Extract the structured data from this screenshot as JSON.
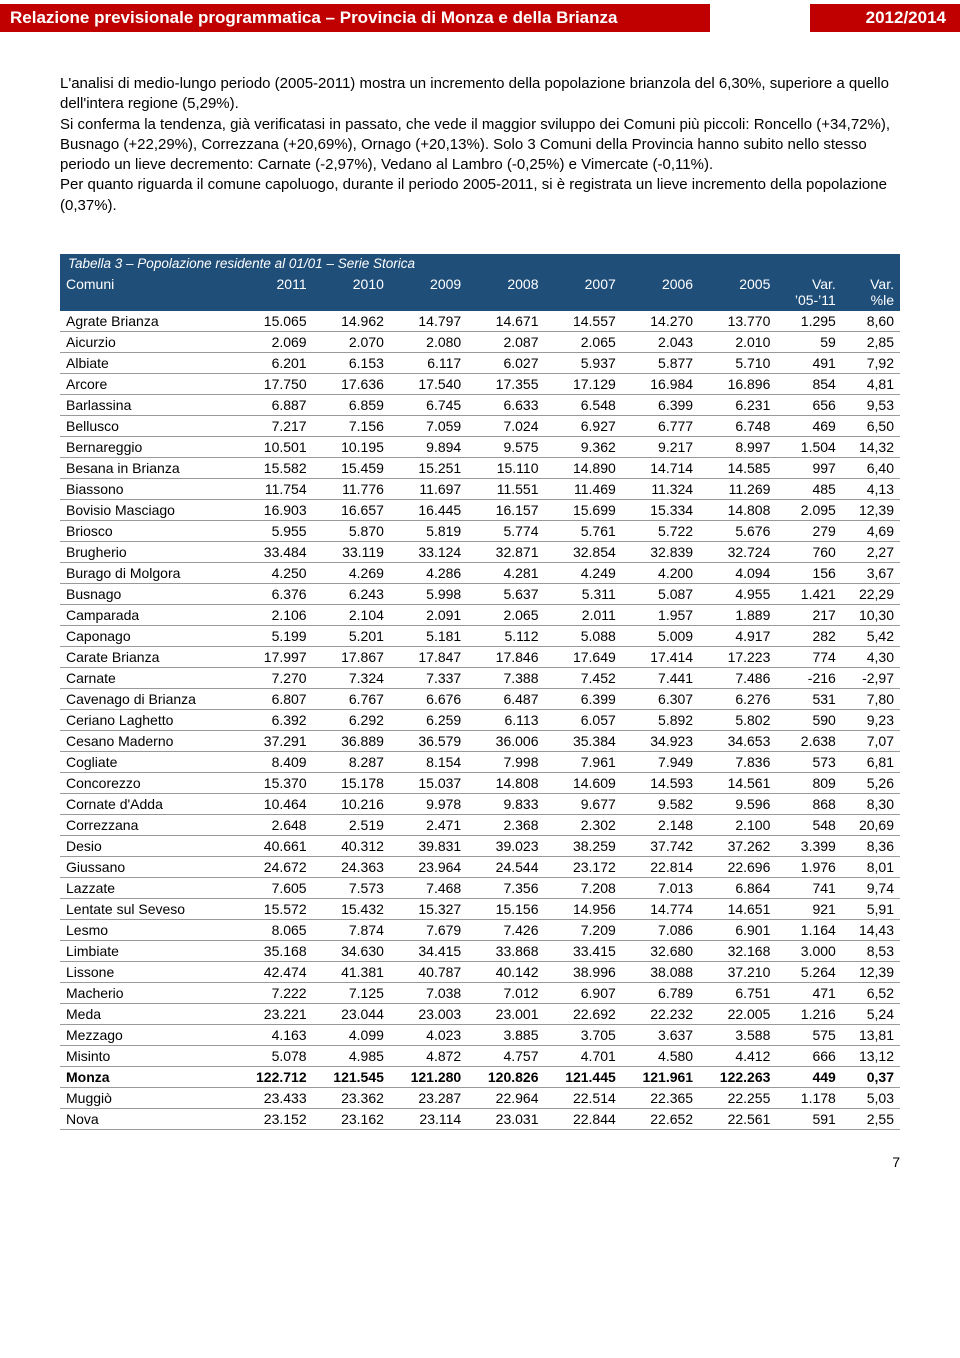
{
  "header": {
    "title": "Relazione previsionale programmatica – Provincia di Monza e della Brianza",
    "year": "2012/2014"
  },
  "body": {
    "p1": "L'analisi di medio-lungo periodo (2005-2011) mostra un incremento della popolazione brianzola del 6,30%, superiore a quello dell'intera regione (5,29%).",
    "p2": "Si conferma la tendenza, già verificatasi in passato, che vede il maggior sviluppo dei Comuni più piccoli: Roncello (+34,72%), Busnago (+22,29%), Correzzana (+20,69%), Ornago (+20,13%). Solo 3 Comuni della Provincia hanno subito nello stesso periodo un lieve decremento: Carnate (-2,97%), Vedano al Lambro (-0,25%) e Vimercate (-0,11%).",
    "p3": "Per quanto riguarda il comune capoluogo, durante il periodo 2005-2011, si è registrata un lieve incremento della popolazione (0,37%)."
  },
  "table": {
    "caption": "Tabella 3 – Popolazione residente al 01/01 – Serie Storica",
    "columns": [
      "Comuni",
      "2011",
      "2010",
      "2009",
      "2008",
      "2007",
      "2006",
      "2005",
      "Var. '05-'11",
      "Var. %le"
    ],
    "columnsSub": [
      "",
      "",
      "",
      "",
      "",
      "",
      "",
      "",
      "'05-'11",
      "%le"
    ],
    "rows": [
      [
        "Agrate Brianza",
        "15.065",
        "14.962",
        "14.797",
        "14.671",
        "14.557",
        "14.270",
        "13.770",
        "1.295",
        "8,60"
      ],
      [
        "Aicurzio",
        "2.069",
        "2.070",
        "2.080",
        "2.087",
        "2.065",
        "2.043",
        "2.010",
        "59",
        "2,85"
      ],
      [
        "Albiate",
        "6.201",
        "6.153",
        "6.117",
        "6.027",
        "5.937",
        "5.877",
        "5.710",
        "491",
        "7,92"
      ],
      [
        "Arcore",
        "17.750",
        "17.636",
        "17.540",
        "17.355",
        "17.129",
        "16.984",
        "16.896",
        "854",
        "4,81"
      ],
      [
        "Barlassina",
        "6.887",
        "6.859",
        "6.745",
        "6.633",
        "6.548",
        "6.399",
        "6.231",
        "656",
        "9,53"
      ],
      [
        "Bellusco",
        "7.217",
        "7.156",
        "7.059",
        "7.024",
        "6.927",
        "6.777",
        "6.748",
        "469",
        "6,50"
      ],
      [
        "Bernareggio",
        "10.501",
        "10.195",
        "9.894",
        "9.575",
        "9.362",
        "9.217",
        "8.997",
        "1.504",
        "14,32"
      ],
      [
        "Besana in Brianza",
        "15.582",
        "15.459",
        "15.251",
        "15.110",
        "14.890",
        "14.714",
        "14.585",
        "997",
        "6,40"
      ],
      [
        "Biassono",
        "11.754",
        "11.776",
        "11.697",
        "11.551",
        "11.469",
        "11.324",
        "11.269",
        "485",
        "4,13"
      ],
      [
        "Bovisio Masciago",
        "16.903",
        "16.657",
        "16.445",
        "16.157",
        "15.699",
        "15.334",
        "14.808",
        "2.095",
        "12,39"
      ],
      [
        "Briosco",
        "5.955",
        "5.870",
        "5.819",
        "5.774",
        "5.761",
        "5.722",
        "5.676",
        "279",
        "4,69"
      ],
      [
        "Brugherio",
        "33.484",
        "33.119",
        "33.124",
        "32.871",
        "32.854",
        "32.839",
        "32.724",
        "760",
        "2,27"
      ],
      [
        "Burago di Molgora",
        "4.250",
        "4.269",
        "4.286",
        "4.281",
        "4.249",
        "4.200",
        "4.094",
        "156",
        "3,67"
      ],
      [
        "Busnago",
        "6.376",
        "6.243",
        "5.998",
        "5.637",
        "5.311",
        "5.087",
        "4.955",
        "1.421",
        "22,29"
      ],
      [
        "Camparada",
        "2.106",
        "2.104",
        "2.091",
        "2.065",
        "2.011",
        "1.957",
        "1.889",
        "217",
        "10,30"
      ],
      [
        "Caponago",
        "5.199",
        "5.201",
        "5.181",
        "5.112",
        "5.088",
        "5.009",
        "4.917",
        "282",
        "5,42"
      ],
      [
        "Carate Brianza",
        "17.997",
        "17.867",
        "17.847",
        "17.846",
        "17.649",
        "17.414",
        "17.223",
        "774",
        "4,30"
      ],
      [
        "Carnate",
        "7.270",
        "7.324",
        "7.337",
        "7.388",
        "7.452",
        "7.441",
        "7.486",
        "-216",
        "-2,97"
      ],
      [
        "Cavenago di Brianza",
        "6.807",
        "6.767",
        "6.676",
        "6.487",
        "6.399",
        "6.307",
        "6.276",
        "531",
        "7,80"
      ],
      [
        "Ceriano Laghetto",
        "6.392",
        "6.292",
        "6.259",
        "6.113",
        "6.057",
        "5.892",
        "5.802",
        "590",
        "9,23"
      ],
      [
        "Cesano Maderno",
        "37.291",
        "36.889",
        "36.579",
        "36.006",
        "35.384",
        "34.923",
        "34.653",
        "2.638",
        "7,07"
      ],
      [
        "Cogliate",
        "8.409",
        "8.287",
        "8.154",
        "7.998",
        "7.961",
        "7.949",
        "7.836",
        "573",
        "6,81"
      ],
      [
        "Concorezzo",
        "15.370",
        "15.178",
        "15.037",
        "14.808",
        "14.609",
        "14.593",
        "14.561",
        "809",
        "5,26"
      ],
      [
        "Cornate d'Adda",
        "10.464",
        "10.216",
        "9.978",
        "9.833",
        "9.677",
        "9.582",
        "9.596",
        "868",
        "8,30"
      ],
      [
        "Correzzana",
        "2.648",
        "2.519",
        "2.471",
        "2.368",
        "2.302",
        "2.148",
        "2.100",
        "548",
        "20,69"
      ],
      [
        "Desio",
        "40.661",
        "40.312",
        "39.831",
        "39.023",
        "38.259",
        "37.742",
        "37.262",
        "3.399",
        "8,36"
      ],
      [
        "Giussano",
        "24.672",
        "24.363",
        "23.964",
        "24.544",
        "23.172",
        "22.814",
        "22.696",
        "1.976",
        "8,01"
      ],
      [
        "Lazzate",
        "7.605",
        "7.573",
        "7.468",
        "7.356",
        "7.208",
        "7.013",
        "6.864",
        "741",
        "9,74"
      ],
      [
        "Lentate sul Seveso",
        "15.572",
        "15.432",
        "15.327",
        "15.156",
        "14.956",
        "14.774",
        "14.651",
        "921",
        "5,91"
      ],
      [
        "Lesmo",
        "8.065",
        "7.874",
        "7.679",
        "7.426",
        "7.209",
        "7.086",
        "6.901",
        "1.164",
        "14,43"
      ],
      [
        "Limbiate",
        "35.168",
        "34.630",
        "34.415",
        "33.868",
        "33.415",
        "32.680",
        "32.168",
        "3.000",
        "8,53"
      ],
      [
        "Lissone",
        "42.474",
        "41.381",
        "40.787",
        "40.142",
        "38.996",
        "38.088",
        "37.210",
        "5.264",
        "12,39"
      ],
      [
        "Macherio",
        "7.222",
        "7.125",
        "7.038",
        "7.012",
        "6.907",
        "6.789",
        "6.751",
        "471",
        "6,52"
      ],
      [
        "Meda",
        "23.221",
        "23.044",
        "23.003",
        "23.001",
        "22.692",
        "22.232",
        "22.005",
        "1.216",
        "5,24"
      ],
      [
        "Mezzago",
        "4.163",
        "4.099",
        "4.023",
        "3.885",
        "3.705",
        "3.637",
        "3.588",
        "575",
        "13,81"
      ],
      [
        "Misinto",
        "5.078",
        "4.985",
        "4.872",
        "4.757",
        "4.701",
        "4.580",
        "4.412",
        "666",
        "13,12"
      ],
      [
        "Monza",
        "122.712",
        "121.545",
        "121.280",
        "120.826",
        "121.445",
        "121.961",
        "122.263",
        "449",
        "0,37"
      ],
      [
        "Muggiò",
        "23.433",
        "23.362",
        "23.287",
        "22.964",
        "22.514",
        "22.365",
        "22.255",
        "1.178",
        "5,03"
      ],
      [
        "Nova",
        "23.152",
        "23.162",
        "23.114",
        "23.031",
        "22.844",
        "22.652",
        "22.561",
        "591",
        "2,55"
      ]
    ],
    "boldRows": [
      "Monza"
    ]
  },
  "pageNumber": "7"
}
